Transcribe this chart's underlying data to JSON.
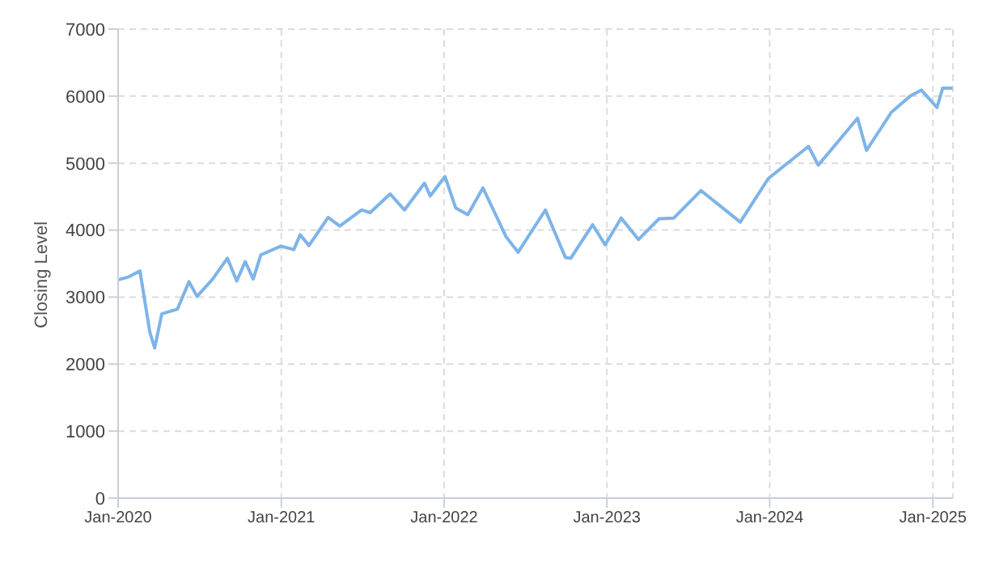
{
  "chart_data": {
    "type": "line",
    "ylabel": "Closing Level",
    "x": [
      "2020-01-02",
      "2020-01-24",
      "2020-02-19",
      "2020-03-12",
      "2020-03-23",
      "2020-04-08",
      "2020-05-13",
      "2020-06-08",
      "2020-06-26",
      "2020-07-31",
      "2020-09-02",
      "2020-09-23",
      "2020-10-12",
      "2020-10-30",
      "2020-11-16",
      "2020-12-31",
      "2021-01-29",
      "2021-02-12",
      "2021-03-04",
      "2021-04-16",
      "2021-05-12",
      "2021-06-30",
      "2021-07-19",
      "2021-09-02",
      "2021-10-04",
      "2021-11-18",
      "2021-12-01",
      "2022-01-03",
      "2022-01-27",
      "2022-02-23",
      "2022-03-29",
      "2022-05-20",
      "2022-06-16",
      "2022-08-16",
      "2022-09-30",
      "2022-10-12",
      "2022-11-30",
      "2022-12-28",
      "2023-02-02",
      "2023-03-13",
      "2023-04-28",
      "2023-05-31",
      "2023-07-31",
      "2023-10-27",
      "2023-12-29",
      "2024-03-28",
      "2024-04-19",
      "2024-07-16",
      "2024-08-05",
      "2024-09-30",
      "2024-11-11",
      "2024-12-06",
      "2025-01-10",
      "2025-01-23",
      "2025-02-14"
    ],
    "series": [
      {
        "color": "#7eb4e8",
        "values": [
          3260,
          3300,
          3390,
          2480,
          2240,
          2750,
          2820,
          3230,
          3010,
          3270,
          3580,
          3240,
          3530,
          3270,
          3630,
          3760,
          3710,
          3930,
          3770,
          4190,
          4060,
          4300,
          4260,
          4540,
          4300,
          4700,
          4510,
          4800,
          4330,
          4230,
          4630,
          3900,
          3670,
          4300,
          3590,
          3580,
          4080,
          3780,
          4180,
          3860,
          4170,
          4180,
          4590,
          4120,
          4770,
          5250,
          4970,
          5670,
          5190,
          5760,
          6000,
          6090,
          5830,
          6120,
          6120
        ]
      }
    ],
    "xlim": [
      "2020-01-01",
      "2025-02-15"
    ],
    "xticks": [
      {
        "value": "2020-01-01",
        "label": "Jan-2020"
      },
      {
        "value": "2021-01-01",
        "label": "Jan-2021"
      },
      {
        "value": "2022-01-01",
        "label": "Jan-2022"
      },
      {
        "value": "2023-01-01",
        "label": "Jan-2023"
      },
      {
        "value": "2024-01-01",
        "label": "Jan-2024"
      },
      {
        "value": "2025-01-01",
        "label": "Jan-2025"
      }
    ],
    "ylim": [
      0,
      7000
    ],
    "yticks": [
      0,
      1000,
      2000,
      3000,
      4000,
      5000,
      6000,
      7000
    ],
    "grid": true,
    "marker": "none",
    "line_style": "solid",
    "legend": false
  }
}
